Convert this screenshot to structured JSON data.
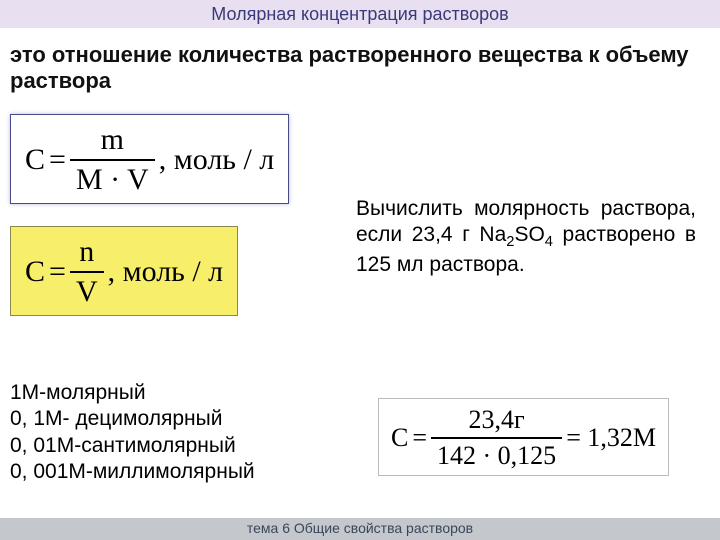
{
  "title": "Молярная концентрация  растворов",
  "definition": " это отношение количества растворенного вещества к объему раствора",
  "formula1": {
    "lhs": "C",
    "num": "m",
    "den": "M · V",
    "unit": ", моль / л"
  },
  "formula2": {
    "lhs": "C",
    "num": "n",
    "den": "V",
    "unit": ", моль / л"
  },
  "problem": {
    "line1": "Вычислить молярность раствора, если 23,4 г Na",
    "sub1": "2",
    "mid1": "SO",
    "sub2": "4",
    "line2": " растворено в 125 мл раствора."
  },
  "legend": {
    "l1": "1М-молярный",
    "l2": "0, 1М- децимолярный",
    "l3": "0, 01М-сантимолярный",
    "l4": "0, 001М-миллимолярный"
  },
  "solution": {
    "lhs": "C",
    "num": "23,4г",
    "den": "142 · 0,125",
    "rhs": "= 1,32M"
  },
  "footer": "тема 6  Общие свойства растворов",
  "style": {
    "title_bg": "#e8e0f0",
    "title_color": "#3a3a7a",
    "formula_hl_bg": "#f7ee6a",
    "footer_bg": "#c4c8cc",
    "footer_color": "#3a465a",
    "page_bg": "#ffffff",
    "text_color": "#000000",
    "title_fontsize": 18,
    "body_fontsize": 22,
    "formula_fontsize": 30
  }
}
